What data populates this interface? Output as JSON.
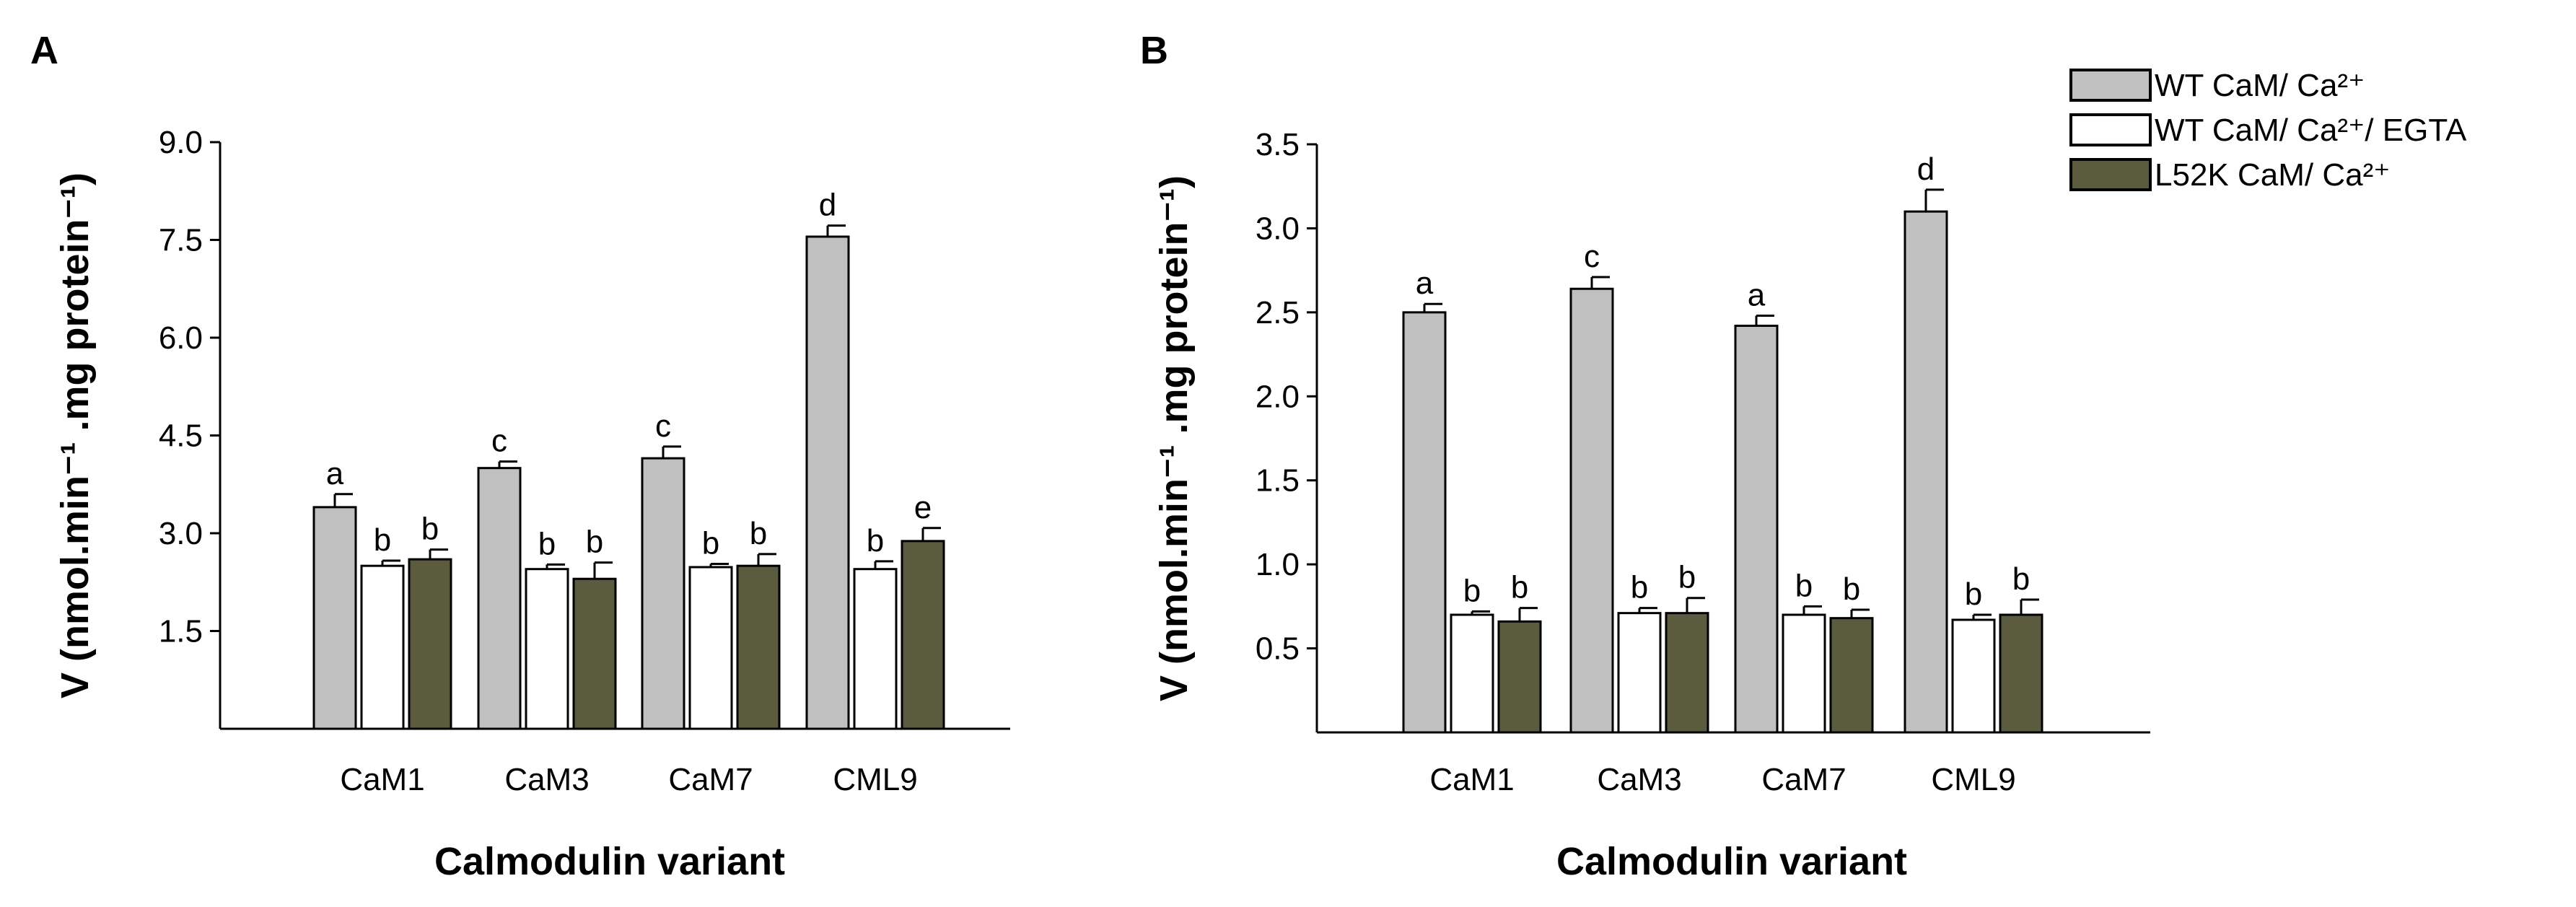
{
  "legend": [
    {
      "name": "WT CaM/ Ca²⁺",
      "color": "#c0c0c0"
    },
    {
      "name": "WT CaM/ Ca²⁺/ EGTA",
      "color": "#ffffff"
    },
    {
      "name": "L52K CaM/ Ca²⁺",
      "color": "#5b5b40"
    }
  ],
  "chart_data": [
    {
      "type": "bar",
      "panel": "A",
      "title": "",
      "xlabel": "Calmodulin variant",
      "ylabel": "V (nmol.min⁻¹ .mg protein⁻¹)",
      "ylim": [
        0,
        9.0
      ],
      "yticks": [
        1.5,
        3.0,
        4.5,
        6.0,
        7.5,
        9.0
      ],
      "ytick_labels": [
        "1.5",
        "3.0",
        "4.5",
        "6.0",
        "7.5",
        "9.0"
      ],
      "categories": [
        "CaM1",
        "CaM3",
        "CaM7",
        "CML9"
      ],
      "series": [
        {
          "name": "WT CaM/ Ca²⁺",
          "values": [
            3.4,
            4.0,
            4.15,
            7.55
          ],
          "errors": [
            0.2,
            0.1,
            0.18,
            0.17
          ],
          "labels": [
            "a",
            "c",
            "c",
            "d"
          ]
        },
        {
          "name": "WT CaM/ Ca²⁺/ EGTA",
          "values": [
            2.5,
            2.45,
            2.48,
            2.45
          ],
          "errors": [
            0.08,
            0.07,
            0.05,
            0.12
          ],
          "labels": [
            "b",
            "b",
            "b",
            "b"
          ]
        },
        {
          "name": "L52K CaM/ Ca²⁺",
          "values": [
            2.6,
            2.3,
            2.5,
            2.88
          ],
          "errors": [
            0.15,
            0.25,
            0.18,
            0.2
          ],
          "labels": [
            "b",
            "b",
            "b",
            "e"
          ]
        }
      ]
    },
    {
      "type": "bar",
      "panel": "B",
      "title": "",
      "xlabel": "Calmodulin variant",
      "ylabel": "V (nmol.min⁻¹ .mg protein⁻¹)",
      "ylim": [
        0,
        3.5
      ],
      "yticks": [
        0.5,
        1.0,
        1.5,
        2.0,
        2.5,
        3.0,
        3.5
      ],
      "ytick_labels": [
        "0.5",
        "1.0",
        "1.5",
        "2.0",
        "2.5",
        "3.0",
        "3.5"
      ],
      "categories": [
        "CaM1",
        "CaM3",
        "CaM7",
        "CML9"
      ],
      "series": [
        {
          "name": "WT CaM/ Ca²⁺",
          "values": [
            2.5,
            2.64,
            2.42,
            3.1
          ],
          "errors": [
            0.05,
            0.07,
            0.06,
            0.13
          ],
          "labels": [
            "a",
            "c",
            "a",
            "d"
          ]
        },
        {
          "name": "WT CaM/ Ca²⁺/ EGTA",
          "values": [
            0.7,
            0.71,
            0.7,
            0.67
          ],
          "errors": [
            0.02,
            0.03,
            0.05,
            0.03
          ],
          "labels": [
            "b",
            "b",
            "b",
            "b"
          ]
        },
        {
          "name": "L52K CaM/ Ca²⁺",
          "values": [
            0.66,
            0.71,
            0.68,
            0.7
          ],
          "errors": [
            0.08,
            0.09,
            0.05,
            0.09
          ],
          "labels": [
            "b",
            "b",
            "b",
            "b"
          ]
        }
      ]
    }
  ]
}
